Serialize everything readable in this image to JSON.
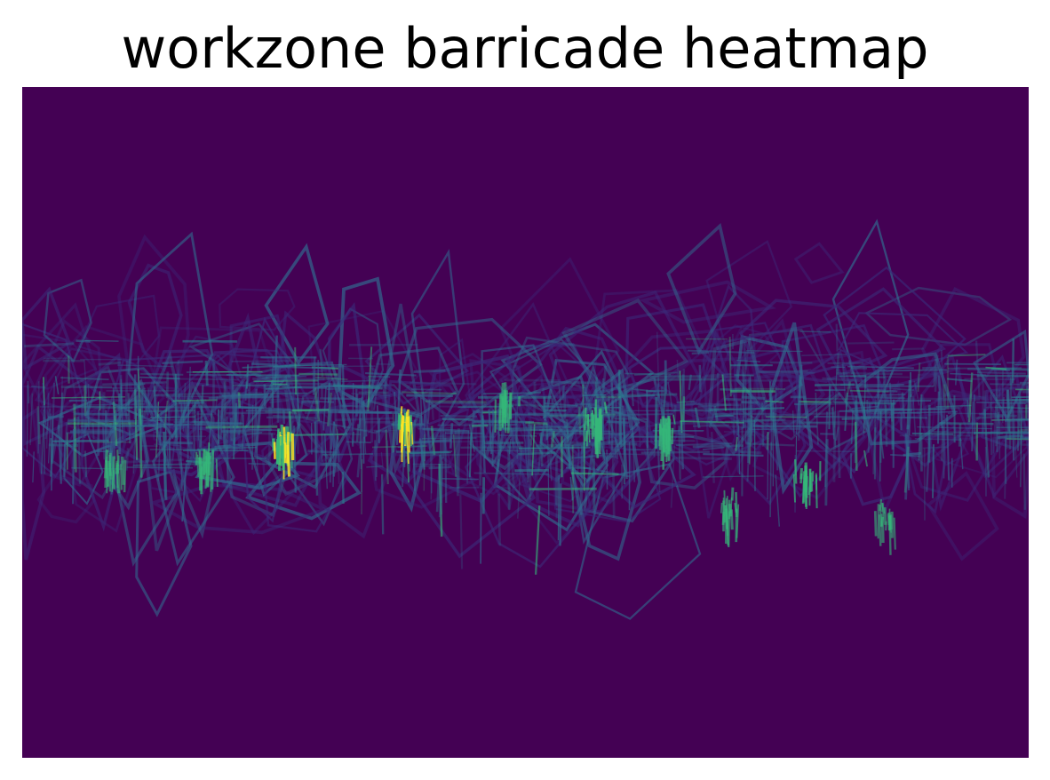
{
  "chart_data": {
    "type": "heatmap",
    "title": "workzone barricade heatmap",
    "xlabel": "",
    "ylabel": "",
    "axes_visible": false,
    "grid": false,
    "legend": "none",
    "colormap": "viridis",
    "value_range": [
      0,
      1
    ],
    "dominant_pattern": "horizontal band of overlapping barricade outlines across the middle, hotspots near the center band",
    "hotspots": [
      {
        "x": 0.26,
        "y": 0.52,
        "value": 0.92
      },
      {
        "x": 0.38,
        "y": 0.49,
        "value": 0.85
      },
      {
        "x": 0.57,
        "y": 0.49,
        "value": 0.8
      },
      {
        "x": 0.64,
        "y": 0.5,
        "value": 0.7
      },
      {
        "x": 0.78,
        "y": 0.57,
        "value": 0.75
      },
      {
        "x": 0.18,
        "y": 0.55,
        "value": 0.65
      },
      {
        "x": 0.48,
        "y": 0.46,
        "value": 0.55
      },
      {
        "x": 0.7,
        "y": 0.62,
        "value": 0.6
      },
      {
        "x": 0.09,
        "y": 0.56,
        "value": 0.5
      },
      {
        "x": 0.86,
        "y": 0.63,
        "value": 0.5
      }
    ]
  },
  "colors": {
    "background": "#440154",
    "low": "#3b2a78",
    "mid": "#31688e",
    "high": "#35b779",
    "peak": "#fde725"
  }
}
